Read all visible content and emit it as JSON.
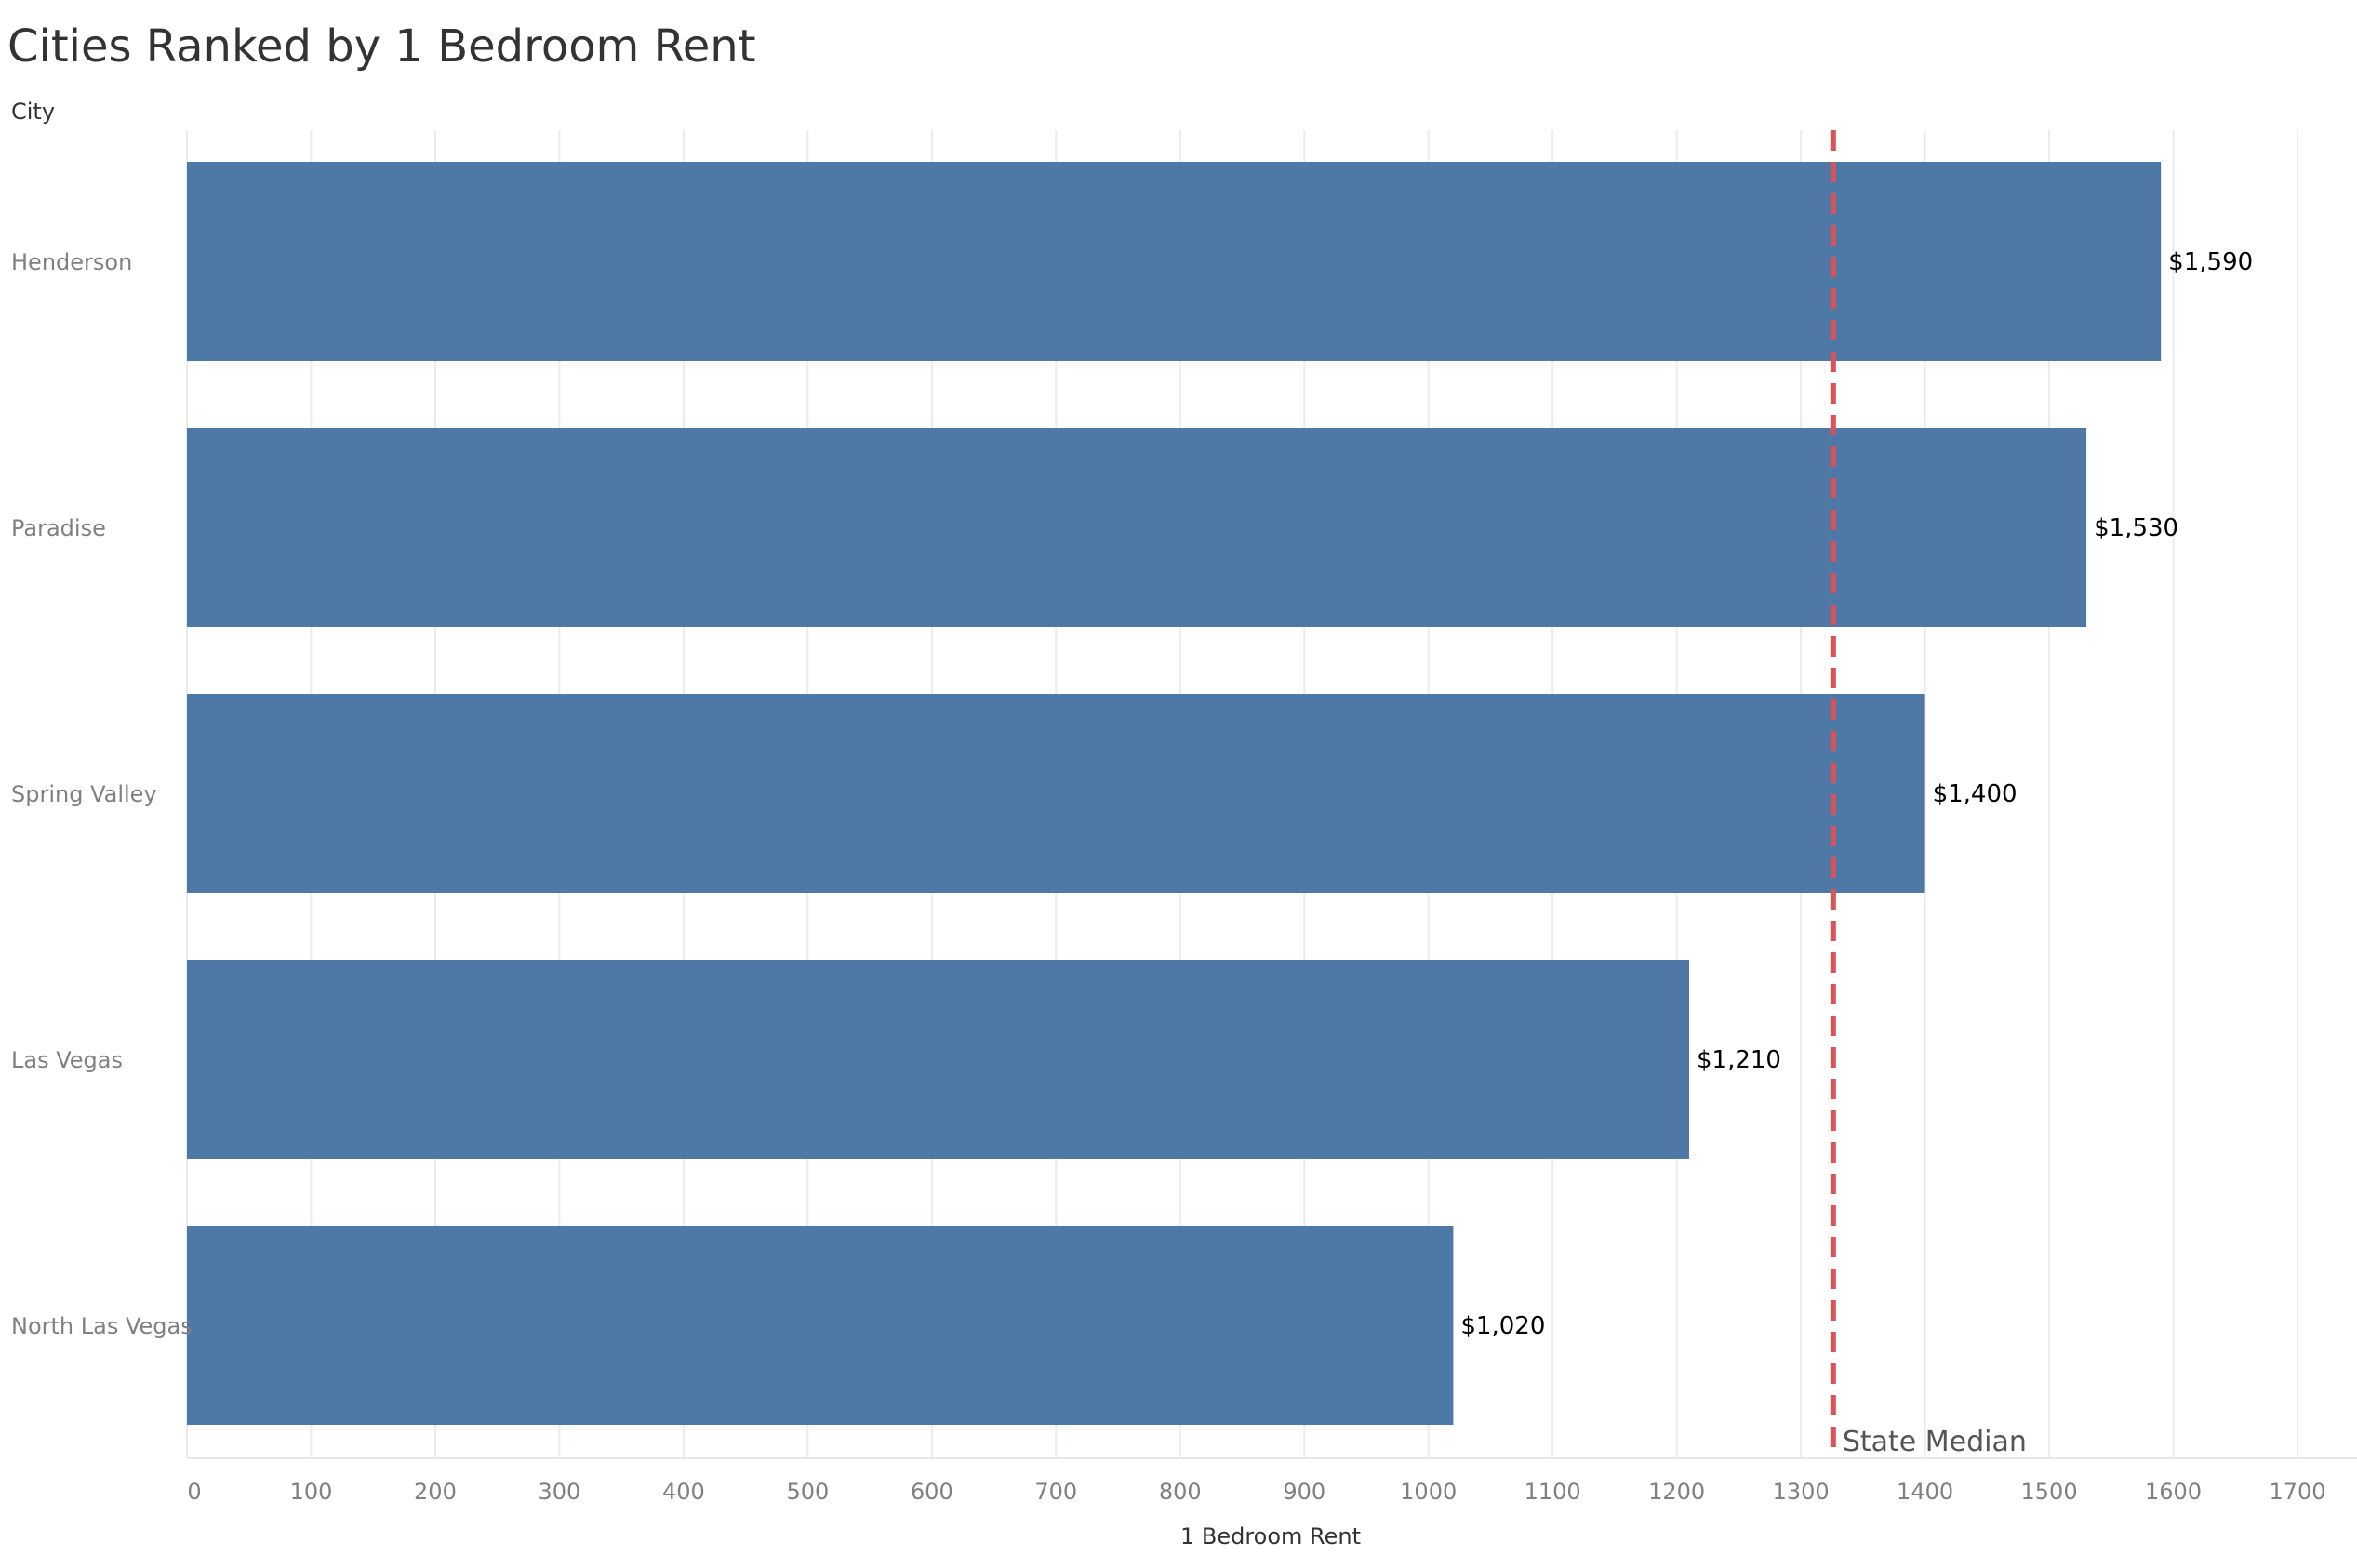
{
  "chart_data": {
    "type": "bar",
    "orientation": "horizontal",
    "title": "Cities Ranked by 1 Bedroom Rent",
    "ylabel": "City",
    "xlabel": "1 Bedroom Rent",
    "categories": [
      "Henderson",
      "Paradise",
      "Spring Valley",
      "Las Vegas",
      "North Las Vegas"
    ],
    "values": [
      1590,
      1530,
      1400,
      1210,
      1020
    ],
    "data_labels": [
      "$1,590",
      "$1,530",
      "$1,400",
      "$1,210",
      "$1,020"
    ],
    "xticks": [
      0,
      100,
      200,
      300,
      400,
      500,
      600,
      700,
      800,
      900,
      1000,
      1100,
      1200,
      1300,
      1400,
      1500,
      1600,
      1700
    ],
    "xlim": [
      0,
      1750
    ],
    "grid": "vertical",
    "reference_line": {
      "label": "State Median",
      "value": 1326,
      "style": "dashed"
    },
    "colors": {
      "bar": "#4e79a7",
      "reference": "#d9535a",
      "grid": "#ebebeb",
      "title": "#333333",
      "category_label": "#808080",
      "tick_label": "#808080",
      "data_label": "#000000",
      "axis_title": "#333333"
    }
  }
}
